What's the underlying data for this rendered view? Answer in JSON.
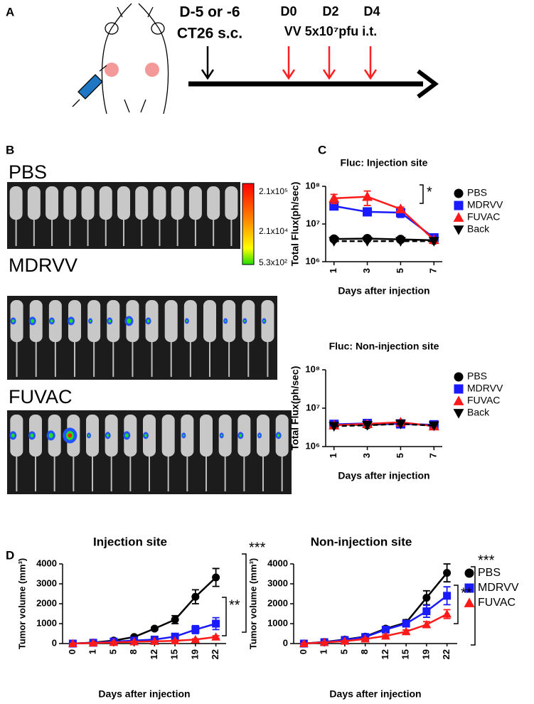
{
  "panel_labels": [
    "A",
    "B",
    "C",
    "D"
  ],
  "timeline": {
    "pre_day": "D-5 or -6",
    "pre_treatment": "CT26 s.c.",
    "days": [
      "D0",
      "D2",
      "D4"
    ],
    "treatment": "VV 5x10⁷pfu i.t."
  },
  "imaging": {
    "groups": [
      "PBS",
      "MDRVV",
      "FUVAC"
    ],
    "colorbar_labels": [
      "2.1x10⁵",
      "2.1x10⁴",
      "5.3x10²"
    ]
  },
  "chart_data": [
    {
      "type": "line",
      "title": "Fluc: Injection site",
      "y_label": "Total Flux(ph/sec)",
      "x_label": "Days after injection",
      "log_scale": true,
      "x": [
        1,
        3,
        5,
        7
      ],
      "xlim": [
        0.5,
        7.5
      ],
      "xticks": [
        1,
        3,
        5,
        7
      ],
      "ylim": [
        1000000,
        100000000
      ],
      "yticks": [
        {
          "value": 1000000,
          "label": "10⁶"
        },
        {
          "value": 10000000,
          "label": "10⁷"
        },
        {
          "value": 100000000,
          "label": "10⁸"
        }
      ],
      "legend": "right",
      "series": [
        {
          "name": "PBS",
          "color": "#000000",
          "marker": "circle",
          "values": [
            4000000,
            4100000,
            3900000,
            3700000
          ]
        },
        {
          "name": "MDRVV",
          "color": "#1a1aff",
          "marker": "square",
          "values": [
            30000000,
            21000000,
            20000000,
            4300000
          ],
          "errors": [
            5000000,
            3000000,
            5000000,
            300000
          ]
        },
        {
          "name": "FUVAC",
          "color": "#ff1a1a",
          "marker": "triangle-up",
          "values": [
            48000000,
            53000000,
            25000000,
            3800000
          ],
          "errors": [
            13000000,
            22000000,
            3000000,
            300000
          ]
        },
        {
          "name": "Back",
          "color": "#000000",
          "marker": "triangle-down",
          "dashed": true,
          "values": [
            3500000,
            3500000,
            3500000,
            3500000
          ]
        }
      ],
      "annotations": [
        "*"
      ]
    },
    {
      "type": "line",
      "title": "Fluc: Non-injection site",
      "y_label": "Total Flux(ph/sec)",
      "x_label": "Days after injection",
      "log_scale": true,
      "x": [
        1,
        3,
        5,
        7
      ],
      "xlim": [
        0.5,
        7.5
      ],
      "xticks": [
        1,
        3,
        5,
        7
      ],
      "ylim": [
        1000000,
        100000000
      ],
      "yticks": [
        {
          "value": 1000000,
          "label": "10⁶"
        },
        {
          "value": 10000000,
          "label": "10⁷"
        },
        {
          "value": 100000000,
          "label": "10⁸"
        }
      ],
      "legend": "right",
      "series": [
        {
          "name": "PBS",
          "color": "#000000",
          "marker": "circle",
          "values": [
            3700000,
            3700000,
            4000000,
            3600000
          ]
        },
        {
          "name": "MDRVV",
          "color": "#1a1aff",
          "marker": "square",
          "values": [
            3800000,
            4000000,
            3900000,
            3700000
          ]
        },
        {
          "name": "FUVAC",
          "color": "#ff1a1a",
          "marker": "triangle-up",
          "values": [
            3600000,
            3900000,
            4300000,
            3400000
          ]
        },
        {
          "name": "Back",
          "color": "#000000",
          "marker": "triangle-down",
          "dashed": true,
          "values": [
            3400000,
            3600000,
            3900000,
            3500000
          ]
        }
      ]
    },
    {
      "type": "line",
      "title": "Injection site",
      "y_label": "Tumor volume (mm³)",
      "x_label": "Days after injection",
      "categories": [
        "0",
        "1",
        "5",
        "8",
        "12",
        "15",
        "19",
        "22"
      ],
      "ylim": [
        0,
        4000
      ],
      "yticks": [
        0,
        1000,
        2000,
        3000,
        4000
      ],
      "series": [
        {
          "color": "#000000",
          "marker": "circle",
          "values": [
            0,
            50,
            150,
            330,
            750,
            1200,
            2350,
            3320
          ],
          "errors": [
            0,
            20,
            40,
            60,
            80,
            200,
            350,
            450
          ]
        },
        {
          "color": "#1a1aff",
          "marker": "square",
          "values": [
            0,
            40,
            100,
            150,
            200,
            350,
            700,
            1000
          ],
          "errors": [
            0,
            10,
            30,
            40,
            50,
            80,
            200,
            300
          ]
        },
        {
          "color": "#ff1a1a",
          "marker": "triangle-up",
          "values": [
            0,
            30,
            60,
            90,
            110,
            140,
            200,
            330
          ],
          "errors": [
            0,
            5,
            10,
            20,
            20,
            30,
            40,
            60
          ]
        }
      ],
      "annotations": [
        "***",
        "**"
      ]
    },
    {
      "type": "line",
      "title": "Non-injection site",
      "y_label": "Tumor volume (mm³)",
      "x_label": "Days after injection",
      "categories": [
        "0",
        "1",
        "5",
        "8",
        "12",
        "15",
        "19",
        "22"
      ],
      "ylim": [
        0,
        4000
      ],
      "yticks": [
        0,
        1000,
        2000,
        3000,
        4000
      ],
      "legend": "right",
      "series": [
        {
          "name": "PBS",
          "color": "#000000",
          "marker": "circle",
          "values": [
            0,
            80,
            200,
            350,
            750,
            1050,
            2300,
            3550
          ],
          "errors": [
            0,
            20,
            40,
            60,
            100,
            150,
            350,
            450
          ]
        },
        {
          "name": "MDRVV",
          "color": "#1a1aff",
          "marker": "square",
          "values": [
            0,
            70,
            180,
            330,
            700,
            1000,
            1620,
            2400
          ],
          "errors": [
            0,
            20,
            40,
            60,
            100,
            150,
            300,
            450
          ]
        },
        {
          "name": "FUVAC",
          "color": "#ff1a1a",
          "marker": "triangle-up",
          "values": [
            0,
            60,
            120,
            230,
            380,
            600,
            950,
            1480
          ],
          "errors": [
            0,
            10,
            30,
            40,
            60,
            80,
            150,
            220
          ]
        }
      ],
      "annotations": [
        "***",
        "**"
      ]
    }
  ]
}
